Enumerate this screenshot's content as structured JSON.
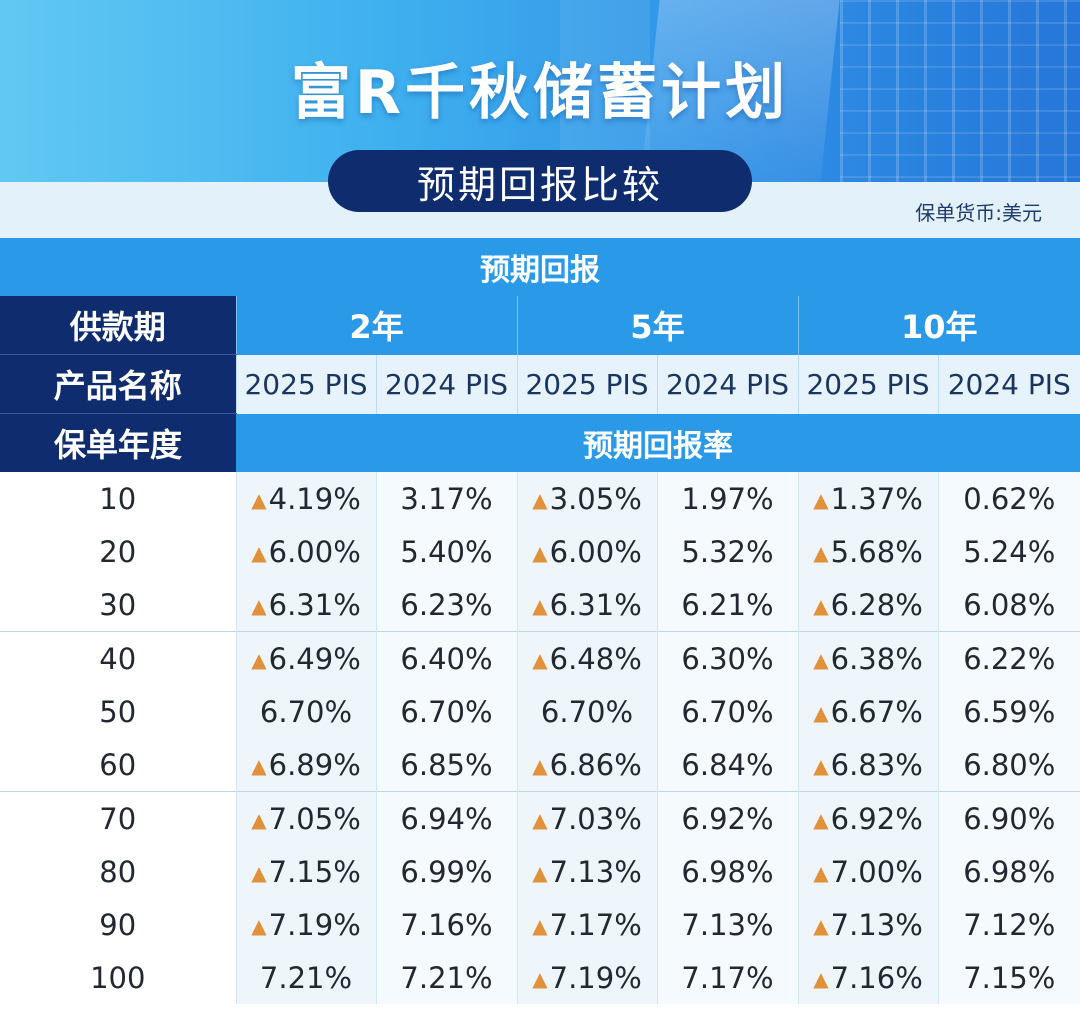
{
  "header": {
    "title": "富R千秋储蓄计划",
    "subtitle": "预期回报比较",
    "currency": "保单货币:美元"
  },
  "table": {
    "section_title": "预期回报",
    "row_labels": {
      "payment_period": "供款期",
      "product_name": "产品名称",
      "policy_year": "保单年度"
    },
    "rate_title": "预期回报率",
    "periods": [
      "2年",
      "5年",
      "10年"
    ],
    "products": [
      "2025 PIS",
      "2024 PIS",
      "2025 PIS",
      "2024 PIS",
      "2025 PIS",
      "2024 PIS"
    ],
    "increase_marker": "▲",
    "accent_color": "#e0913a",
    "rows": [
      {
        "year": "10",
        "values": [
          "4.19%",
          "3.17%",
          "3.05%",
          "1.97%",
          "1.37%",
          "0.62%"
        ],
        "up": [
          true,
          false,
          true,
          false,
          true,
          false
        ]
      },
      {
        "year": "20",
        "values": [
          "6.00%",
          "5.40%",
          "6.00%",
          "5.32%",
          "5.68%",
          "5.24%"
        ],
        "up": [
          true,
          false,
          true,
          false,
          true,
          false
        ]
      },
      {
        "year": "30",
        "values": [
          "6.31%",
          "6.23%",
          "6.31%",
          "6.21%",
          "6.28%",
          "6.08%"
        ],
        "up": [
          true,
          false,
          true,
          false,
          true,
          false
        ]
      },
      {
        "year": "40",
        "values": [
          "6.49%",
          "6.40%",
          "6.48%",
          "6.30%",
          "6.38%",
          "6.22%"
        ],
        "up": [
          true,
          false,
          true,
          false,
          true,
          false
        ]
      },
      {
        "year": "50",
        "values": [
          "6.70%",
          "6.70%",
          "6.70%",
          "6.70%",
          "6.67%",
          "6.59%"
        ],
        "up": [
          false,
          false,
          false,
          false,
          true,
          false
        ]
      },
      {
        "year": "60",
        "values": [
          "6.89%",
          "6.85%",
          "6.86%",
          "6.84%",
          "6.83%",
          "6.80%"
        ],
        "up": [
          true,
          false,
          true,
          false,
          true,
          false
        ]
      },
      {
        "year": "70",
        "values": [
          "7.05%",
          "6.94%",
          "7.03%",
          "6.92%",
          "6.92%",
          "6.90%"
        ],
        "up": [
          true,
          false,
          true,
          false,
          true,
          false
        ]
      },
      {
        "year": "80",
        "values": [
          "7.15%",
          "6.99%",
          "7.13%",
          "6.98%",
          "7.00%",
          "6.98%"
        ],
        "up": [
          true,
          false,
          true,
          false,
          true,
          false
        ]
      },
      {
        "year": "90",
        "values": [
          "7.19%",
          "7.16%",
          "7.17%",
          "7.13%",
          "7.13%",
          "7.12%"
        ],
        "up": [
          true,
          false,
          true,
          false,
          true,
          false
        ]
      },
      {
        "year": "100",
        "values": [
          "7.21%",
          "7.21%",
          "7.19%",
          "7.17%",
          "7.16%",
          "7.15%"
        ],
        "up": [
          false,
          false,
          true,
          false,
          true,
          false
        ]
      }
    ]
  }
}
